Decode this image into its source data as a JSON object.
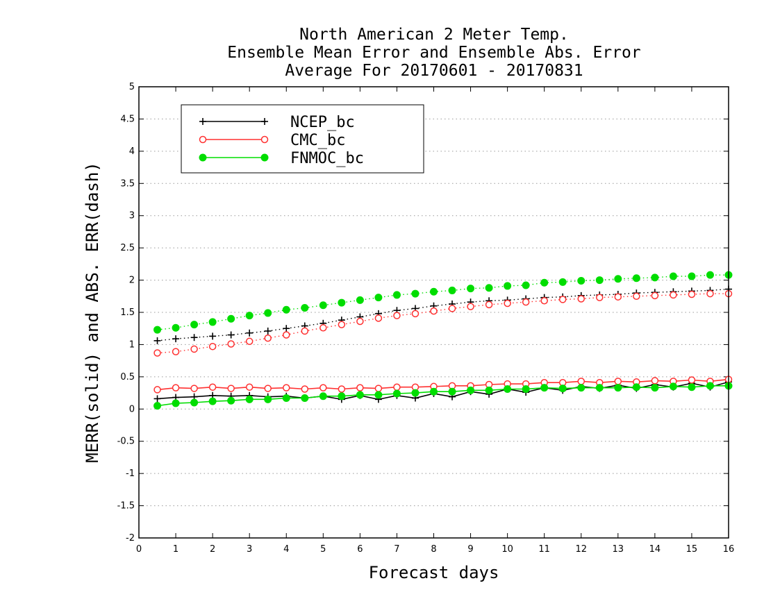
{
  "chart_data": {
    "type": "line",
    "title_lines": [
      "North American 2 Meter Temp.",
      "Ensemble Mean Error and Ensemble Abs. Error",
      "Average For 20170601 - 20170831"
    ],
    "xlabel": "Forecast days",
    "ylabel": "MERR(solid) and ABS. ERR(dash)",
    "xlim": [
      0,
      16
    ],
    "ylim": [
      -2,
      5
    ],
    "xticks": [
      "0",
      "1",
      "2",
      "3",
      "4",
      "5",
      "6",
      "7",
      "8",
      "9",
      "10",
      "11",
      "12",
      "13",
      "14",
      "15",
      "16"
    ],
    "yticks": [
      "-2",
      "-1.5",
      "-1",
      "-0.5",
      "0",
      "0.5",
      "1",
      "1.5",
      "2",
      "2.5",
      "3",
      "3.5",
      "4",
      "4.5",
      "5"
    ],
    "grid": "horizontal dotted",
    "legend_position": "top-left",
    "x": [
      0.5,
      1,
      1.5,
      2,
      2.5,
      3,
      3.5,
      4,
      4.5,
      5,
      5.5,
      6,
      6.5,
      7,
      7.5,
      8,
      8.5,
      9,
      9.5,
      10,
      10.5,
      11,
      11.5,
      12,
      12.5,
      13,
      13.5,
      14,
      14.5,
      15,
      15.5,
      16
    ],
    "series": [
      {
        "name": "NCEP_bc",
        "color": "#000000",
        "marker": "plus",
        "mean_error": [
          0.16,
          0.18,
          0.19,
          0.21,
          0.2,
          0.21,
          0.19,
          0.2,
          0.17,
          0.2,
          0.15,
          0.21,
          0.15,
          0.21,
          0.17,
          0.24,
          0.19,
          0.27,
          0.23,
          0.31,
          0.26,
          0.33,
          0.29,
          0.35,
          0.32,
          0.37,
          0.32,
          0.38,
          0.34,
          0.4,
          0.34,
          0.42
        ],
        "abs_error": [
          1.06,
          1.09,
          1.11,
          1.13,
          1.15,
          1.18,
          1.21,
          1.25,
          1.29,
          1.33,
          1.38,
          1.43,
          1.48,
          1.53,
          1.56,
          1.6,
          1.63,
          1.66,
          1.68,
          1.69,
          1.71,
          1.73,
          1.74,
          1.76,
          1.77,
          1.78,
          1.8,
          1.81,
          1.82,
          1.83,
          1.84,
          1.86
        ]
      },
      {
        "name": "CMC_bc",
        "color": "#ff3030",
        "marker": "open-circle",
        "mean_error": [
          0.3,
          0.33,
          0.32,
          0.34,
          0.32,
          0.34,
          0.32,
          0.33,
          0.31,
          0.33,
          0.31,
          0.33,
          0.32,
          0.34,
          0.34,
          0.35,
          0.36,
          0.36,
          0.38,
          0.39,
          0.39,
          0.41,
          0.41,
          0.43,
          0.41,
          0.43,
          0.42,
          0.44,
          0.43,
          0.45,
          0.43,
          0.46
        ],
        "abs_error": [
          0.87,
          0.89,
          0.93,
          0.97,
          1.01,
          1.05,
          1.1,
          1.15,
          1.21,
          1.26,
          1.31,
          1.36,
          1.41,
          1.45,
          1.48,
          1.52,
          1.56,
          1.59,
          1.62,
          1.64,
          1.66,
          1.68,
          1.7,
          1.71,
          1.73,
          1.74,
          1.75,
          1.76,
          1.77,
          1.78,
          1.79,
          1.79
        ]
      },
      {
        "name": "FNMOC_bc",
        "color": "#00dd00",
        "marker": "filled-circle",
        "mean_error": [
          0.05,
          0.09,
          0.1,
          0.12,
          0.13,
          0.15,
          0.15,
          0.17,
          0.17,
          0.2,
          0.2,
          0.22,
          0.22,
          0.24,
          0.25,
          0.27,
          0.27,
          0.29,
          0.29,
          0.31,
          0.31,
          0.33,
          0.32,
          0.33,
          0.33,
          0.33,
          0.34,
          0.33,
          0.35,
          0.34,
          0.36,
          0.36
        ],
        "abs_error": [
          1.23,
          1.26,
          1.31,
          1.35,
          1.4,
          1.45,
          1.49,
          1.54,
          1.57,
          1.61,
          1.65,
          1.69,
          1.73,
          1.77,
          1.79,
          1.82,
          1.84,
          1.87,
          1.88,
          1.91,
          1.92,
          1.96,
          1.97,
          1.99,
          2.0,
          2.02,
          2.03,
          2.04,
          2.06,
          2.06,
          2.08,
          2.08
        ]
      }
    ]
  }
}
